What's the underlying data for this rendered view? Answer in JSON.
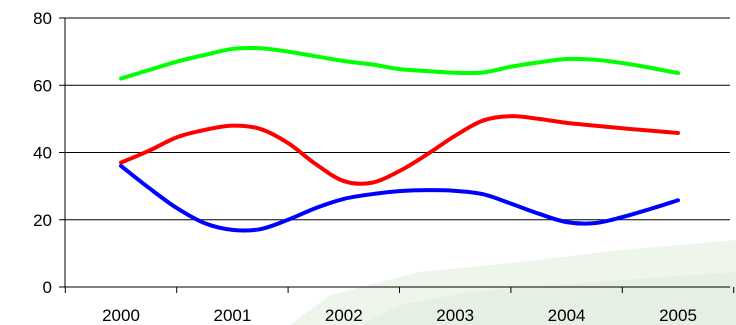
{
  "chart_data": {
    "type": "line",
    "x": [
      2000,
      2000.25,
      2000.5,
      2000.75,
      2001,
      2001.25,
      2001.5,
      2001.75,
      2002,
      2002.25,
      2002.5,
      2002.75,
      2003,
      2003.25,
      2003.5,
      2003.75,
      2004,
      2004.25,
      2004.5,
      2004.75,
      2005
    ],
    "x_ticks": [
      "2000",
      "2001",
      "2002",
      "2003",
      "2004",
      "2005"
    ],
    "y_ticks": [
      "0",
      "20",
      "40",
      "60",
      "80"
    ],
    "ylim": [
      0,
      80
    ],
    "grid": "horizontal",
    "title": "",
    "xlabel": "",
    "ylabel": "",
    "series": [
      {
        "color": "#00ff00",
        "values": [
          62,
          64.5,
          67,
          69,
          70.8,
          71,
          70,
          68.6,
          67.2,
          66.2,
          64.8,
          64.2,
          63.7,
          63.8,
          65.5,
          66.8,
          67.8,
          67.6,
          66.6,
          65.2,
          63.6
        ]
      },
      {
        "color": "#ff0000",
        "values": [
          37,
          40.5,
          44.5,
          46.7,
          48,
          47,
          42.8,
          36.5,
          31.5,
          31,
          34.5,
          39.5,
          45,
          49.5,
          50.8,
          50,
          48.8,
          48,
          47.2,
          46.5,
          45.8
        ]
      },
      {
        "color": "#0000ff",
        "values": [
          36,
          29.5,
          23.5,
          19,
          17,
          17.2,
          20,
          23.5,
          26.2,
          27.6,
          28.5,
          28.8,
          28.6,
          27.6,
          24.8,
          21.8,
          19.3,
          19,
          20.8,
          23.2,
          25.8
        ]
      }
    ]
  }
}
